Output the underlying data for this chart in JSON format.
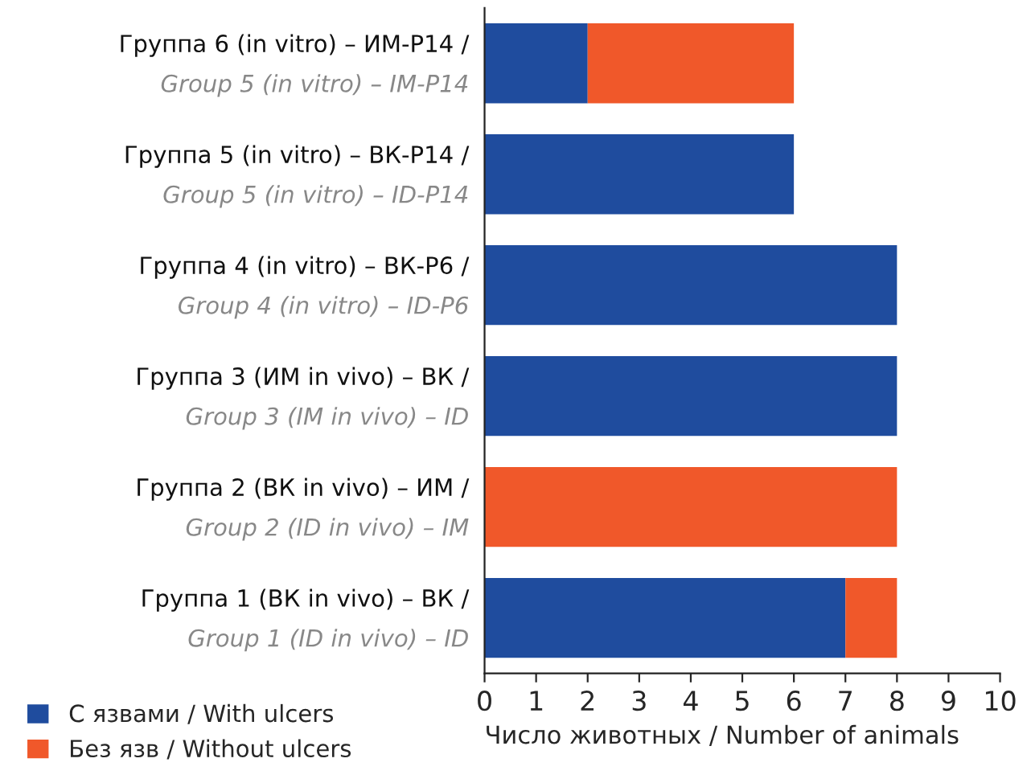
{
  "chart_data": {
    "type": "bar",
    "orientation": "horizontal",
    "stacked": true,
    "xlabel": "Число животных / Number of animals",
    "categories": [
      "Группа 6 (in vitro) – ИМ-Р14 /\nGroup 5 (in vitro) – IM-P14",
      "Группа 5 (in vitro) – ВК-Р14 /\nGroup 5 (in vitro) – ID-P14",
      "Группа 4 (in vitro) – ВК-Р6 /\nGroup 4 (in vitro) – ID-P6",
      "Группа 3 (ИМ in vivo) – ВК /\nGroup 3 (IM in vivo) – ID",
      "Группа 2 (ВК in vivo) – ИМ /\nGroup 2 (ID in vivo) – IM",
      "Группа 1 (ВК in vivo) – ВК /\nGroup 1 (ID in vivo) – ID"
    ],
    "series": [
      {
        "name": "С язвами / With ulcers",
        "color": "#1f4c9e",
        "values": [
          2,
          6,
          8,
          8,
          null,
          7
        ]
      },
      {
        "name": "Без язв / Without ulcers",
        "color": "#f0582a",
        "values": [
          4,
          null,
          null,
          null,
          8,
          1
        ]
      }
    ],
    "xlim": [
      0,
      10
    ],
    "xticks": [
      0,
      1,
      2,
      3,
      4,
      5,
      6,
      7,
      8,
      9,
      10
    ],
    "grid": false,
    "legend": "bottom left"
  }
}
